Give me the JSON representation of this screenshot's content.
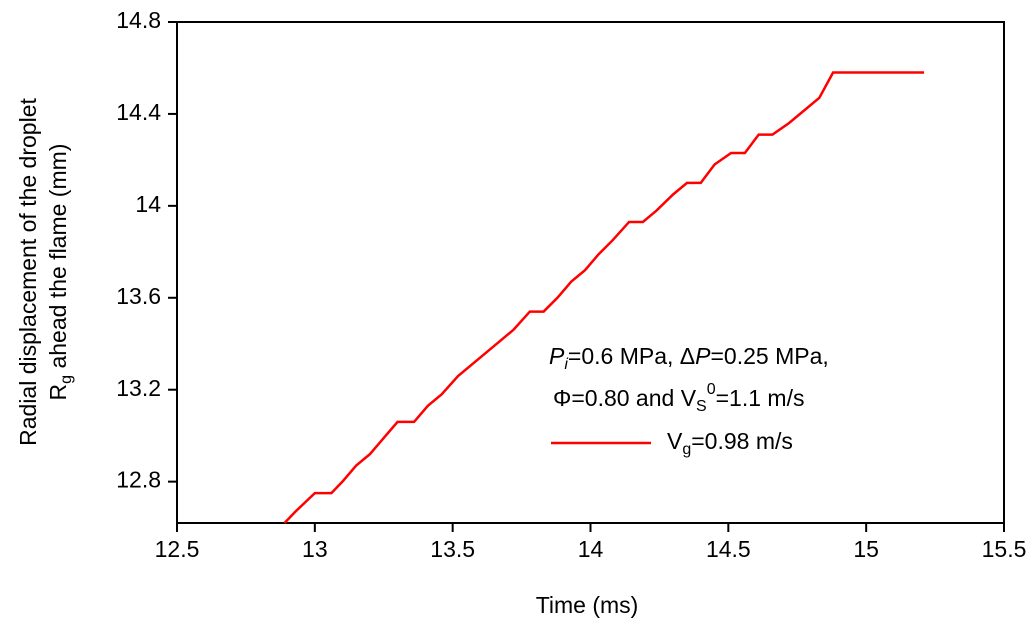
{
  "chart_data": {
    "type": "line",
    "x_label": "Time (ms)",
    "y_label": [
      [
        "Radial displacement of the droplet"
      ],
      [
        "R",
        "g",
        " ahead the flame (mm)"
      ]
    ],
    "annotation": [
      [
        "P",
        "i",
        "=0.6 MPa, Δ",
        "P",
        "=0.25 MPa,"
      ],
      [
        "Φ=0.80 and V",
        "S",
        "0",
        "=1.1 m/s"
      ]
    ],
    "x": [
      12.89,
      12.93,
      13.0,
      13.06,
      13.1,
      13.15,
      13.2,
      13.25,
      13.3,
      13.36,
      13.41,
      13.46,
      13.52,
      13.57,
      13.62,
      13.67,
      13.72,
      13.78,
      13.83,
      13.88,
      13.93,
      13.98,
      14.03,
      14.08,
      14.14,
      14.19,
      14.24,
      14.3,
      14.35,
      14.4,
      14.45,
      14.51,
      14.56,
      14.61,
      14.66,
      14.72,
      14.77,
      14.83,
      14.88,
      15.21
    ],
    "series": [
      {
        "name": [
          "V",
          "g",
          "=0.98 m/s"
        ],
        "color": "#ff0000",
        "values": [
          12.62,
          12.67,
          12.75,
          12.75,
          12.8,
          12.87,
          12.92,
          12.99,
          13.06,
          13.06,
          13.13,
          13.18,
          13.26,
          13.31,
          13.36,
          13.41,
          13.46,
          13.54,
          13.54,
          13.6,
          13.67,
          13.72,
          13.79,
          13.85,
          13.93,
          13.93,
          13.98,
          14.05,
          14.1,
          14.1,
          14.18,
          14.23,
          14.23,
          14.31,
          14.31,
          14.36,
          14.41,
          14.47,
          14.58,
          14.58
        ]
      }
    ],
    "xlim": [
      12.5,
      15.5
    ],
    "xticks": [
      12.5,
      13,
      13.5,
      14,
      14.5,
      15,
      15.5
    ],
    "ylim": [
      12.62,
      14.8
    ],
    "yticks": [
      12.8,
      13.2,
      13.6,
      14,
      14.4,
      14.8
    ]
  }
}
